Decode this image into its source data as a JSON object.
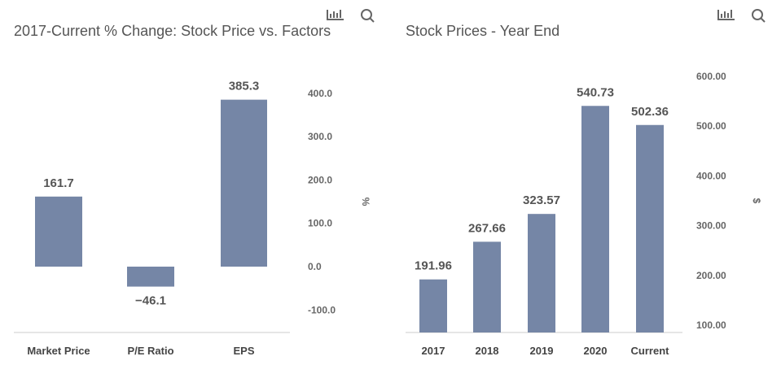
{
  "colors": {
    "bar": "#7586a6",
    "axis": "#ccc"
  },
  "icons": [
    "bar-chart-icon",
    "search-icon"
  ],
  "chart_data": [
    {
      "type": "bar",
      "title": "2017-Current % Change: Stock Price vs. Factors",
      "categories": [
        "Market Price",
        "P/E Ratio",
        "EPS"
      ],
      "values": [
        161.7,
        -46.1,
        385.3
      ],
      "labels": [
        "161.7",
        "−46.1",
        "385.3"
      ],
      "ylabel": "%",
      "ylim": [
        -100,
        400
      ],
      "yticks": [
        400,
        300,
        200,
        100,
        0,
        -100
      ],
      "ytick_labels": [
        "400.0",
        "300.0",
        "200.0",
        "100.0",
        "0.0",
        "-100.0"
      ],
      "grid": false
    },
    {
      "type": "bar",
      "title": "Stock Prices - Year End",
      "categories": [
        "2017",
        "2018",
        "2019",
        "2020",
        "Current"
      ],
      "values": [
        191.96,
        267.66,
        323.57,
        540.73,
        502.36
      ],
      "labels": [
        "191.96",
        "267.66",
        "323.57",
        "540.73",
        "502.36"
      ],
      "ylabel": "$",
      "ylim": [
        100,
        600
      ],
      "yticks": [
        600,
        500,
        400,
        300,
        200,
        100
      ],
      "ytick_labels": [
        "600.00",
        "500.00",
        "400.00",
        "300.00",
        "200.00",
        "100.00"
      ],
      "grid": false
    }
  ]
}
